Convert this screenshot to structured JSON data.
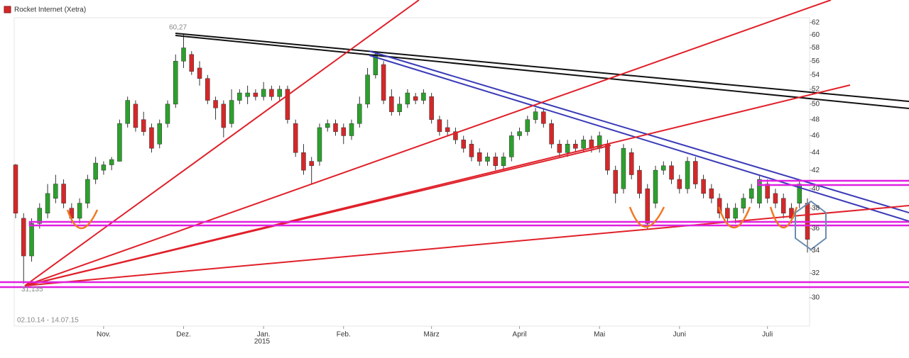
{
  "chart_data": {
    "type": "candlestick",
    "title": "Rocket Internet (Xetra)",
    "subtitle": "02.10.14 - 14.07.15",
    "year_label": "2015",
    "log_scale": true,
    "ylim": [
      27.84,
      62.8
    ],
    "yticks": [
      30,
      32,
      34,
      36,
      38,
      40,
      42,
      44,
      46,
      48,
      50,
      52,
      54,
      56,
      58,
      60,
      62
    ],
    "categories": [
      null,
      null,
      null,
      null,
      null,
      null,
      null,
      null,
      null,
      null,
      null,
      "Nov.",
      null,
      null,
      null,
      null,
      null,
      null,
      null,
      null,
      null,
      "Dez.",
      null,
      null,
      null,
      null,
      null,
      null,
      null,
      null,
      null,
      "Jan.",
      null,
      null,
      null,
      null,
      null,
      null,
      null,
      null,
      null,
      "Feb.",
      null,
      null,
      null,
      null,
      null,
      null,
      null,
      null,
      null,
      null,
      "März",
      null,
      null,
      null,
      null,
      null,
      null,
      null,
      null,
      null,
      null,
      "April",
      null,
      null,
      null,
      null,
      null,
      null,
      null,
      null,
      null,
      "Mai",
      null,
      null,
      null,
      null,
      null,
      null,
      null,
      null,
      null,
      "Juni",
      null,
      null,
      null,
      null,
      null,
      null,
      null,
      null,
      null,
      null,
      "Juli",
      null,
      null,
      null,
      null,
      null
    ],
    "series": [
      {
        "name": "Rocket Internet (Xetra)",
        "color": "#d62728",
        "up_color": "#2ca02c",
        "down_color": "#d62728",
        "open": [
          42.6,
          37,
          33.5,
          36.5,
          37.5,
          39,
          40.5,
          38,
          37,
          38.5,
          41,
          42,
          42.6,
          43,
          47.5,
          50,
          48,
          47,
          45,
          47.5,
          50,
          56,
          57,
          55,
          53.5,
          50.5,
          50,
          47.5,
          50.5,
          51,
          51.5,
          51,
          52,
          51,
          52,
          47.5,
          44,
          43,
          43,
          47,
          47.5,
          47,
          46,
          47.5,
          50,
          54,
          55.5,
          51,
          49,
          50,
          51,
          50.5,
          51,
          48,
          47,
          46.5,
          45.5,
          45,
          44,
          43,
          43.5,
          42.5,
          43.5,
          46,
          46.5,
          48,
          49,
          47.5,
          45,
          44,
          45,
          44.5,
          45.5,
          44.5,
          45,
          42,
          40,
          44,
          42,
          40,
          38.5,
          42,
          42.5,
          41,
          40,
          43,
          41,
          40,
          39,
          38,
          37,
          38,
          39,
          38.5,
          40.5,
          39.5,
          39,
          38,
          38.5,
          38.5
        ],
        "high": [
          42.7,
          37.5,
          37,
          38.5,
          40.5,
          41.5,
          41,
          38.5,
          39,
          41.5,
          43.5,
          43,
          43.5,
          48,
          51,
          50.5,
          49,
          47.5,
          48,
          50.5,
          57,
          60.27,
          57.5,
          56,
          54,
          51,
          50.5,
          52,
          52,
          52.5,
          52,
          53,
          52.5,
          52.5,
          52.5,
          48,
          45,
          43.5,
          47.5,
          48,
          48,
          47.5,
          48,
          51,
          55,
          57.5,
          56,
          52,
          51,
          52,
          51.5,
          52,
          51.5,
          48.5,
          48,
          47,
          46,
          45.5,
          44.5,
          44,
          44,
          44,
          46.5,
          47,
          48.5,
          49.5,
          49.5,
          48,
          45.5,
          45.5,
          45.5,
          46,
          46,
          46.5,
          45.5,
          42.5,
          45,
          44.5,
          42.5,
          40.5,
          42.5,
          43,
          43,
          41.5,
          43.5,
          43.5,
          41.5,
          40.5,
          39.5,
          38.5,
          38.5,
          39.5,
          40.5,
          41.5,
          41,
          40,
          39.5,
          38.5,
          41,
          39
        ],
        "low": [
          37,
          31.135,
          33,
          36,
          37,
          38.5,
          38,
          36.5,
          36.5,
          38,
          40.5,
          41.5,
          42,
          43,
          47,
          46.5,
          46,
          44,
          44.5,
          47,
          49.5,
          55,
          54,
          52.5,
          50,
          48,
          45.8,
          47,
          50,
          50,
          50.5,
          50.5,
          50.5,
          50.5,
          47.5,
          43.5,
          41.5,
          40.5,
          42.5,
          46.5,
          46,
          45,
          45.5,
          47,
          49.5,
          53.5,
          50,
          48.5,
          48.5,
          49.5,
          50,
          50,
          47.5,
          46,
          46,
          45,
          44,
          43,
          42.5,
          42.5,
          42,
          42,
          43,
          45.5,
          46,
          47.5,
          47,
          44.5,
          43.5,
          43.5,
          44,
          44,
          44,
          44,
          41.5,
          38.5,
          39.5,
          41,
          39,
          36,
          38,
          41.5,
          40.5,
          39.5,
          39.5,
          40,
          39,
          38.5,
          37,
          36.5,
          36.5,
          37.5,
          38.5,
          38,
          38.5,
          38,
          37,
          36.5,
          38,
          33.8
        ],
        "close": [
          37.5,
          33.5,
          36.5,
          38,
          39.5,
          40.5,
          38.5,
          37,
          38.5,
          41,
          42.8,
          42.6,
          43.2,
          47.5,
          50.5,
          47,
          46.5,
          44.5,
          47.5,
          50,
          56,
          58,
          54.5,
          53.5,
          50.5,
          49.5,
          47,
          50.5,
          51.5,
          51.5,
          51,
          52,
          51,
          52,
          48,
          44,
          42,
          42.5,
          47,
          47.5,
          46.5,
          46,
          47.5,
          50,
          54,
          57,
          50.5,
          49,
          50,
          51.5,
          50.5,
          51.5,
          48,
          46.5,
          46.5,
          45.5,
          44.5,
          43.5,
          43,
          43.5,
          42.5,
          43.5,
          46,
          46.5,
          48,
          49,
          47.5,
          45,
          44,
          45,
          44.5,
          45.5,
          44.5,
          46,
          42,
          39.5,
          44.5,
          41.5,
          39.5,
          36.5,
          42,
          42.5,
          41,
          40,
          43,
          40.5,
          39.5,
          39,
          37.5,
          37,
          38,
          39,
          40,
          41,
          39,
          38.5,
          37.5,
          37,
          40.5,
          35
        ]
      }
    ],
    "annotations": [
      {
        "label": "60,27",
        "value": 60.27,
        "of": "high"
      },
      {
        "label": "31,135",
        "value": 31.135,
        "of": "low"
      }
    ]
  }
}
